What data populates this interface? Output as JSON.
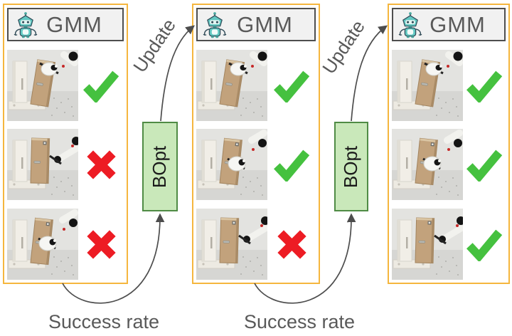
{
  "figure": {
    "gmm_label": "GMM",
    "bopt_label": "BOpt",
    "update_label": "Update",
    "success_rate_label": "Success rate",
    "iterations": [
      {
        "trials": [
          "success",
          "failure",
          "failure"
        ]
      },
      {
        "trials": [
          "success",
          "success",
          "failure"
        ]
      },
      {
        "trials": [
          "success",
          "success",
          "success"
        ]
      }
    ]
  },
  "icons": {
    "header_icon": "robot-mascot-icon",
    "success_icon": "green-check-icon",
    "failure_icon": "red-cross-icon"
  },
  "colors": {
    "panel_border": "#F5B63E",
    "header_bg": "#F1F1F1",
    "header_border": "#4E4E4E",
    "text_gray": "#595959",
    "bopt_fill": "#C9E8BA",
    "bopt_border": "#4F8B45",
    "success_green": "#45C13F",
    "failure_red": "#ED1C24",
    "arrow_color": "#4D4D4D",
    "mascot_teal": "#62C8C2"
  }
}
